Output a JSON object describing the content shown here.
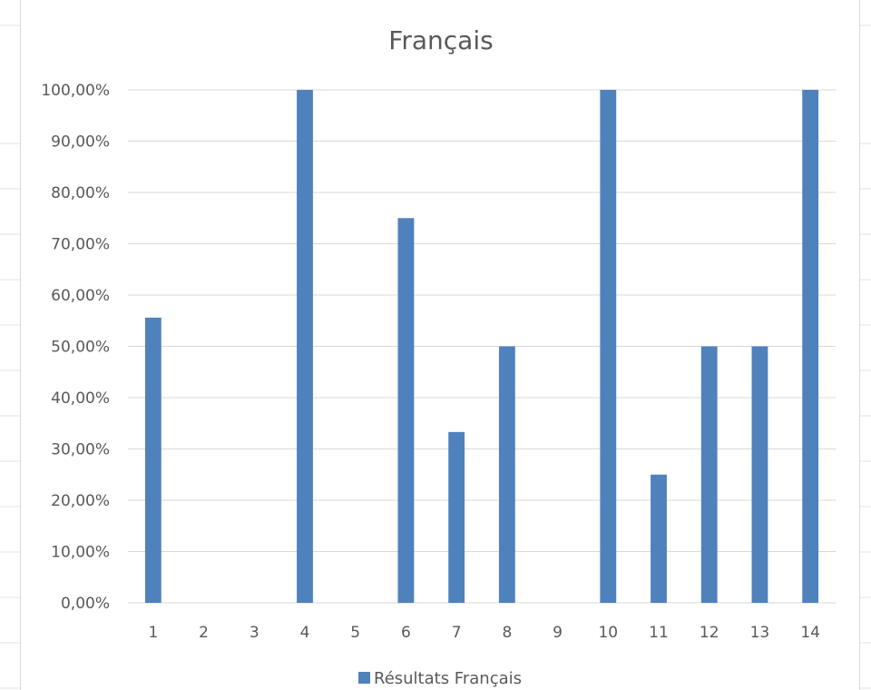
{
  "chart_data": {
    "type": "bar",
    "title": "Français",
    "categories": [
      "1",
      "2",
      "3",
      "4",
      "5",
      "6",
      "7",
      "8",
      "9",
      "10",
      "11",
      "12",
      "13",
      "14"
    ],
    "series": [
      {
        "name": "Résultats Français",
        "color": "#4f81bd",
        "values": [
          0.556,
          0,
          0,
          1.0,
          0,
          0.75,
          0.333,
          0.5,
          0,
          1.0,
          0.25,
          0.5,
          0.5,
          1.0
        ]
      }
    ],
    "y_tick_labels": [
      "0,00%",
      "10,00%",
      "20,00%",
      "30,00%",
      "40,00%",
      "50,00%",
      "60,00%",
      "70,00%",
      "80,00%",
      "90,00%",
      "100,00%"
    ],
    "ylim": [
      0,
      1
    ],
    "y_format": "percent",
    "grid": true,
    "gridline_color": "#d9d9d9",
    "legend_position": "bottom",
    "xlabel": "",
    "ylabel": ""
  }
}
